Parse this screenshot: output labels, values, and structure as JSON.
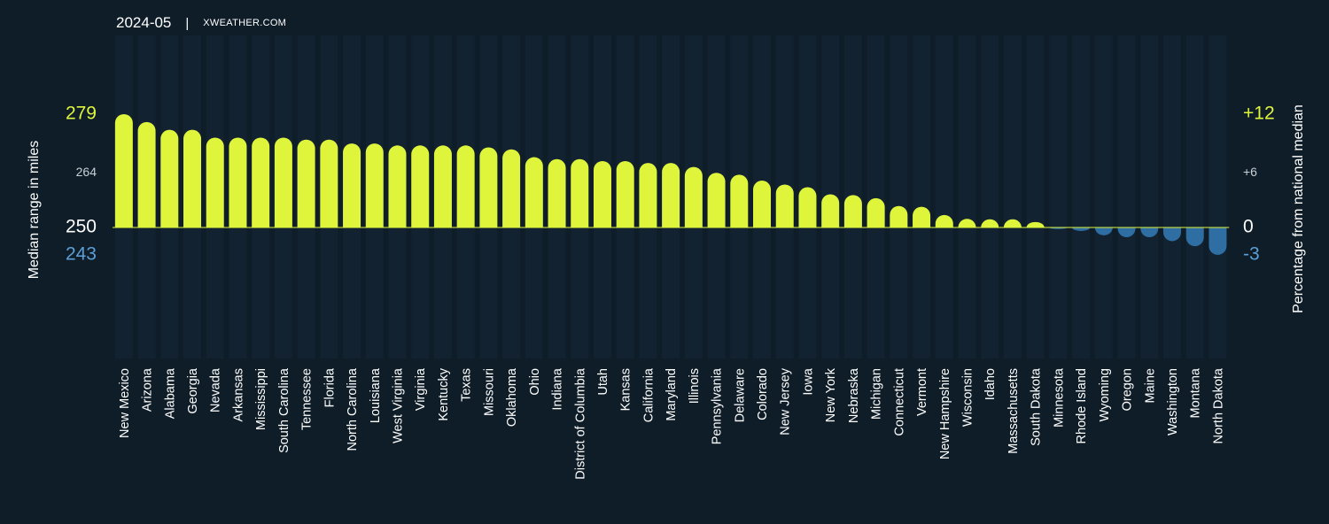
{
  "header": {
    "date": "2024-05",
    "separator": "|",
    "site": "XWEATHER.COM"
  },
  "colors": {
    "background": "#0f1d29",
    "positive": "#dff53c",
    "negative": "#2e6ea3",
    "negative_label": "#5b9fd6",
    "column_bg": "#122230",
    "text": "#ffffff",
    "muted": "#c9d0d6"
  },
  "chart_data": {
    "type": "bar",
    "xlabel": "",
    "ylabel": "Median range in miles",
    "ylabel_right": "Percentage from national median",
    "baseline": 250,
    "ylim": [
      243,
      279
    ],
    "left_ticks": [
      {
        "value": 279,
        "label": "279",
        "style": "positive"
      },
      {
        "value": 264,
        "label": "264",
        "style": "muted"
      },
      {
        "value": 250,
        "label": "250",
        "style": "base"
      },
      {
        "value": 243,
        "label": "243",
        "style": "negative"
      }
    ],
    "right_ticks": [
      {
        "value": 279,
        "label": "+12",
        "style": "positive"
      },
      {
        "value": 264,
        "label": "+6",
        "style": "muted"
      },
      {
        "value": 250,
        "label": "0",
        "style": "base"
      },
      {
        "value": 243,
        "label": "-3",
        "style": "negative"
      }
    ],
    "categories": [
      "New Mexico",
      "Arizona",
      "Alabama",
      "Georgia",
      "Nevada",
      "Arkansas",
      "Mississippi",
      "South Carolina",
      "Tennessee",
      "Florida",
      "North Carolina",
      "Louisiana",
      "West Virginia",
      "Virginia",
      "Kentucky",
      "Texas",
      "Missouri",
      "Oklahoma",
      "Ohio",
      "Indiana",
      "District of Columbia",
      "Utah",
      "Kansas",
      "California",
      "Maryland",
      "Illinois",
      "Pennsylvania",
      "Delaware",
      "Colorado",
      "New Jersey",
      "Iowa",
      "New York",
      "Nebraska",
      "Michigan",
      "Connecticut",
      "Vermont",
      "New Hampshire",
      "Wisconsin",
      "Idaho",
      "Massachusetts",
      "South Dakota",
      "Minnesota",
      "Rhode Island",
      "Wyoming",
      "Oregon",
      "Maine",
      "Washington",
      "Montana",
      "North Dakota"
    ],
    "values": [
      279,
      277,
      275,
      275,
      273,
      273,
      273,
      273,
      272.5,
      272.5,
      271.5,
      271.5,
      271,
      271,
      271,
      271,
      270.5,
      270,
      268,
      267.5,
      267.5,
      267,
      267,
      266.5,
      266.5,
      265.5,
      264,
      263.5,
      262,
      261,
      260.3,
      258.5,
      258.3,
      257.5,
      255.5,
      255.3,
      253.2,
      252.2,
      252.1,
      252.1,
      251.4,
      249.6,
      249.1,
      248,
      247.5,
      247.5,
      246.5,
      245.2,
      243
    ]
  }
}
